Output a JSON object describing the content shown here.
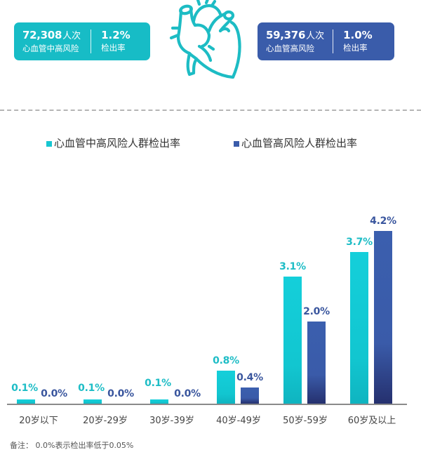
{
  "stats": [
    {
      "number": "72,308",
      "unit": "人次",
      "subtitle": "心血管中高风险",
      "rate": "1.2%",
      "rate_label": "检出率",
      "color": "#17bcc6"
    },
    {
      "number": "59,376",
      "unit": "人次",
      "subtitle": "心血管高风险",
      "rate": "1.0%",
      "rate_label": "检出率",
      "color": "#3a5caa"
    }
  ],
  "icon": {
    "name": "heart-icon",
    "color": "#1dbcc4"
  },
  "legend": [
    {
      "label": "心血管中高风险人群检出率",
      "color": "#17c6d1"
    },
    {
      "label": "心血管高风险人群检出率",
      "color": "#3a5caa"
    }
  ],
  "chart_data": {
    "type": "bar",
    "title": "",
    "xlabel": "",
    "ylabel": "",
    "categories": [
      "20岁以下",
      "20岁-29岁",
      "30岁-39岁",
      "40岁-49岁",
      "50岁-59岁",
      "60岁及以上"
    ],
    "series": [
      {
        "name": "心血管中高风险人群检出率",
        "values": [
          0.1,
          0.1,
          0.1,
          0.8,
          3.1,
          3.7
        ],
        "labels": [
          "0.1%",
          "0.1%",
          "0.1%",
          "0.8%",
          "3.1%",
          "3.7%"
        ],
        "color": "#17c6d1"
      },
      {
        "name": "心血管高风险人群检出率",
        "values": [
          0.0,
          0.0,
          0.0,
          0.4,
          2.0,
          4.2
        ],
        "labels": [
          "0.0%",
          "0.0%",
          "0.0%",
          "0.4%",
          "2.0%",
          "4.2%"
        ],
        "color": "#3a5caa"
      }
    ],
    "ylim": [
      0,
      4.5
    ],
    "grid": false,
    "legend_position": "top",
    "data_labels": true
  },
  "footnote": "备注：  0.0%表示检出率低于0.05%"
}
